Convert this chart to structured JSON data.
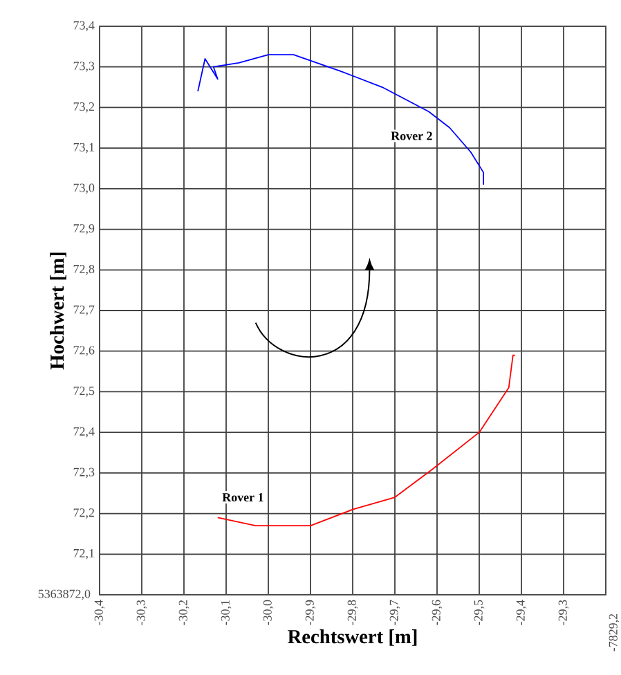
{
  "chart_data": {
    "type": "line",
    "xlabel": "Rechtswert [m]",
    "ylabel": "Hochwert [m]",
    "xlim": [
      -30.4,
      -29.2
    ],
    "ylim": [
      72.0,
      73.4
    ],
    "xticks": [
      {
        "value": -30.4,
        "label": "-30,4"
      },
      {
        "value": -30.3,
        "label": "-30,3"
      },
      {
        "value": -30.2,
        "label": "-30,2"
      },
      {
        "value": -30.1,
        "label": "-30,1"
      },
      {
        "value": -30.0,
        "label": "-30,0"
      },
      {
        "value": -29.9,
        "label": "-29,9"
      },
      {
        "value": -29.8,
        "label": "-29,8"
      },
      {
        "value": -29.7,
        "label": "-29,7"
      },
      {
        "value": -29.6,
        "label": "-29,6"
      },
      {
        "value": -29.5,
        "label": "-29,5"
      },
      {
        "value": -29.4,
        "label": "-29,4"
      },
      {
        "value": -29.3,
        "label": "-29,3"
      },
      {
        "value": -29.2,
        "label": null
      }
    ],
    "annotations": [
      "5363872,0",
      "-7829,2"
    ],
    "yticks": [
      {
        "value": 72.0,
        "label": null
      },
      {
        "value": 72.1,
        "label": "72,1"
      },
      {
        "value": 72.2,
        "label": "72,2"
      },
      {
        "value": 72.3,
        "label": "72,3"
      },
      {
        "value": 72.4,
        "label": "72,4"
      },
      {
        "value": 72.5,
        "label": "72,5"
      },
      {
        "value": 72.6,
        "label": "72,6"
      },
      {
        "value": 72.7,
        "label": "72,7"
      },
      {
        "value": 72.8,
        "label": "72,8"
      },
      {
        "value": 72.9,
        "label": "72,9"
      },
      {
        "value": 73.0,
        "label": "73,0"
      },
      {
        "value": 73.1,
        "label": "73,1"
      },
      {
        "value": 73.2,
        "label": "73,2"
      },
      {
        "value": 73.3,
        "label": "73,3"
      },
      {
        "value": 73.4,
        "label": "73,4"
      }
    ],
    "grid": true,
    "legend": false,
    "marker": "none",
    "line_style": "solid",
    "series": [
      {
        "name": "Rover 1",
        "color": "#ff0000",
        "x": [
          -30.12,
          -30.03,
          -29.9,
          -29.8,
          -29.7,
          -29.61,
          -29.5,
          -29.43,
          -29.42,
          -29.415
        ],
        "values": [
          72.19,
          72.17,
          72.17,
          72.21,
          72.24,
          72.31,
          72.4,
          72.51,
          72.59,
          72.59
        ]
      },
      {
        "name": "Rover 2",
        "color": "#0000ff",
        "x": [
          -30.167,
          -30.15,
          -30.12,
          -30.13,
          -30.07,
          -30.0,
          -29.94,
          -29.83,
          -29.73,
          -29.62,
          -29.57,
          -29.52,
          -29.49,
          -29.49
        ],
        "values": [
          73.24,
          73.32,
          73.27,
          73.3,
          73.31,
          73.33,
          73.33,
          73.29,
          73.25,
          73.19,
          73.15,
          73.09,
          73.04,
          73.01
        ]
      }
    ]
  }
}
